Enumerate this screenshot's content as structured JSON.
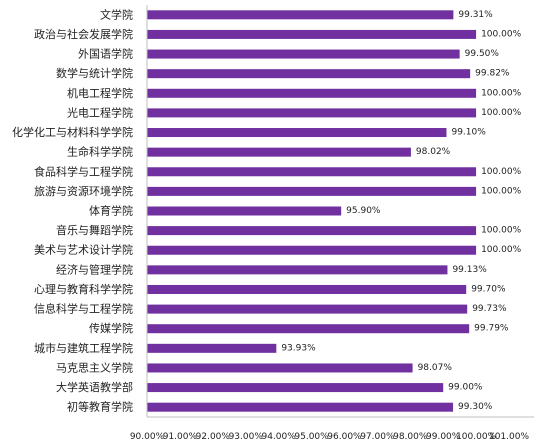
{
  "chart_data": {
    "type": "bar",
    "orientation": "horizontal",
    "title": "",
    "xlabel": "",
    "ylabel": "",
    "xlim": [
      90,
      101
    ],
    "grid": false,
    "legend": "none",
    "bar_color": "#7030a0",
    "categories": [
      "文学院",
      "政治与社会发展学院",
      "外国语学院",
      "数学与统计学院",
      "机电工程学院",
      "光电工程学院",
      "化学化工与材料科学学院",
      "生命科学学院",
      "食品科学与工程学院",
      "旅游与资源环境学院",
      "体育学院",
      "音乐与舞蹈学院",
      "美术与艺术设计学院",
      "经济与管理学院",
      "心理与教育科学学院",
      "信息科学与工程学院",
      "传媒学院",
      "城市与建筑工程学院",
      "马克思主义学院",
      "大学英语教学部",
      "初等教育学院"
    ],
    "values": [
      99.31,
      100.0,
      99.5,
      99.82,
      100.0,
      100.0,
      99.1,
      98.02,
      100.0,
      100.0,
      95.9,
      100.0,
      100.0,
      99.13,
      99.7,
      99.73,
      99.79,
      93.93,
      98.07,
      99.0,
      99.3
    ],
    "data_labels": [
      "99.31%",
      "100.00%",
      "99.50%",
      "99.82%",
      "100.00%",
      "100.00%",
      "99.10%",
      "98.02%",
      "100.00%",
      "100.00%",
      "95.90%",
      "100.00%",
      "100.00%",
      "99.13%",
      "99.70%",
      "99.73%",
      "99.79%",
      "93.93%",
      "98.07%",
      "99.00%",
      "99.30%"
    ],
    "x_ticks": [
      90,
      91,
      92,
      93,
      94,
      95,
      96,
      97,
      98,
      99,
      100,
      101
    ],
    "x_tick_labels": [
      "90.00%",
      "91.00%",
      "92.00%",
      "93.00%",
      "94.00%",
      "95.00%",
      "96.00%",
      "97.00%",
      "98.00%",
      "99.00%",
      "100.00%",
      "101.00%"
    ]
  }
}
